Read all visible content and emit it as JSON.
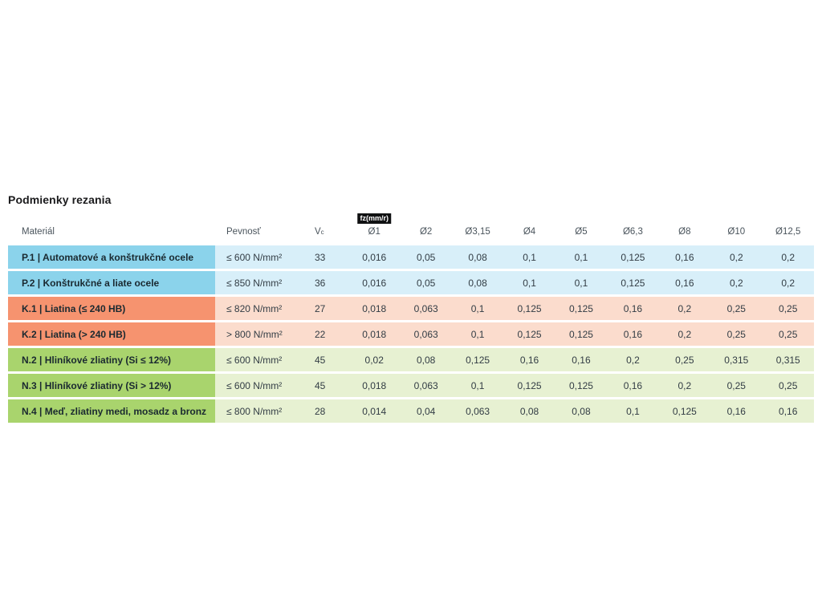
{
  "page": {
    "title": "Podmienky rezania"
  },
  "table": {
    "badge": "fz(mm/r)",
    "headers": {
      "material": "Materiál",
      "pevnost": "Pevnosť",
      "vc_main": "V",
      "vc_sub": "c",
      "diameters": [
        "Ø1",
        "Ø2",
        "Ø3,15",
        "Ø4",
        "Ø5",
        "Ø6,3",
        "Ø8",
        "Ø10",
        "Ø12,5"
      ]
    },
    "rows": [
      {
        "group": "P",
        "material": "P.1 | Automatové a konštrukčné ocele",
        "pevnost": "≤ 600 N/mm²",
        "vc": "33",
        "values": [
          "0,016",
          "0,05",
          "0,08",
          "0,1",
          "0,1",
          "0,125",
          "0,16",
          "0,2",
          "0,2"
        ]
      },
      {
        "group": "P",
        "material": "P.2 | Konštrukčné a liate ocele",
        "pevnost": "≤ 850 N/mm²",
        "vc": "36",
        "values": [
          "0,016",
          "0,05",
          "0,08",
          "0,1",
          "0,1",
          "0,125",
          "0,16",
          "0,2",
          "0,2"
        ]
      },
      {
        "group": "K",
        "material": "K.1 | Liatina (≤ 240 HB)",
        "pevnost": "≤ 820 N/mm²",
        "vc": "27",
        "values": [
          "0,018",
          "0,063",
          "0,1",
          "0,125",
          "0,125",
          "0,16",
          "0,2",
          "0,25",
          "0,25"
        ]
      },
      {
        "group": "K",
        "material": "K.2 | Liatina (> 240 HB)",
        "pevnost": "> 800 N/mm²",
        "vc": "22",
        "values": [
          "0,018",
          "0,063",
          "0,1",
          "0,125",
          "0,125",
          "0,16",
          "0,2",
          "0,25",
          "0,25"
        ]
      },
      {
        "group": "N",
        "material": "N.2 | Hliníkové zliatiny (Si ≤ 12%)",
        "pevnost": "≤ 600 N/mm²",
        "vc": "45",
        "values": [
          "0,02",
          "0,08",
          "0,125",
          "0,16",
          "0,16",
          "0,2",
          "0,25",
          "0,315",
          "0,315"
        ]
      },
      {
        "group": "N",
        "material": "N.3 | Hliníkové zliatiny (Si > 12%)",
        "pevnost": "≤ 600 N/mm²",
        "vc": "45",
        "values": [
          "0,018",
          "0,063",
          "0,1",
          "0,125",
          "0,125",
          "0,16",
          "0,2",
          "0,25",
          "0,25"
        ]
      },
      {
        "group": "N",
        "material": "N.4 | Meď, zliatiny medi, mosadz a bronz",
        "pevnost": "≤ 800 N/mm²",
        "vc": "28",
        "values": [
          "0,014",
          "0,04",
          "0,063",
          "0,08",
          "0,08",
          "0,1",
          "0,125",
          "0,16",
          "0,16"
        ]
      }
    ],
    "colors": {
      "P_label": "#8bd3eb",
      "P_row": "#d8eff9",
      "K_label": "#f6936f",
      "K_row": "#fbdccd",
      "N_label": "#a9d46d",
      "N_row": "#e7f1d2",
      "badge_bg": "#101112",
      "badge_text": "#ffffff",
      "header_text": "#4a545c"
    }
  }
}
